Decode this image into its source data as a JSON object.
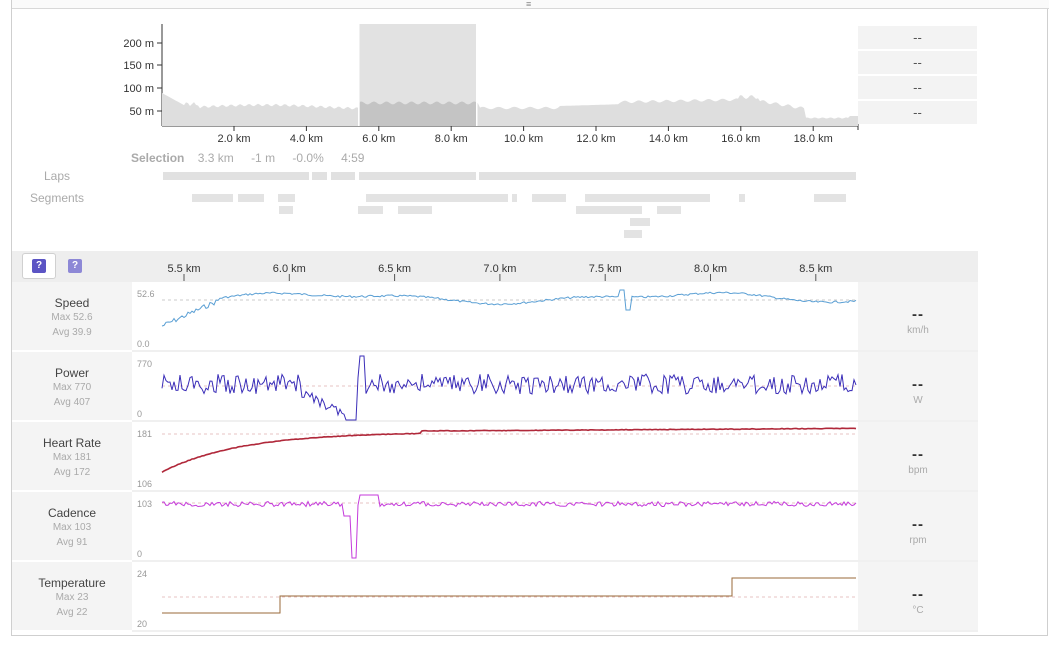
{
  "overview": {
    "y_ticks": [
      "200 m",
      "150 m",
      "100 m",
      "50 m"
    ],
    "x_ticks": [
      "2.0 km",
      "4.0 km",
      "6.0 km",
      "8.0 km",
      "10.0 km",
      "12.0 km",
      "14.0 km",
      "16.0 km",
      "18.0 km"
    ],
    "side_values": [
      "--",
      "--",
      "--",
      "--"
    ]
  },
  "selection": {
    "label": "Selection",
    "distance": "3.3 km",
    "elevation": "-1 m",
    "grade": "-0.0%",
    "time": "4:59"
  },
  "tracks": {
    "laps_label": "Laps",
    "segments_label": "Segments"
  },
  "toolbar": {
    "button1_icon": "question-icon",
    "button2_icon": "question-icon",
    "glyph": "?"
  },
  "ruler": {
    "x_ticks": [
      "5.5 km",
      "6.0 km",
      "6.5 km",
      "7.0 km",
      "7.5 km",
      "8.0 km",
      "8.5 km"
    ]
  },
  "panels": [
    {
      "name": "Speed",
      "max": "Max 52.6",
      "avg": "Avg 39.9",
      "ytop": "52.6",
      "ybot": "0.0",
      "value": "--",
      "unit": "km/h",
      "color": "#5a9fd4"
    },
    {
      "name": "Power",
      "max": "Max 770",
      "avg": "Avg 407",
      "ytop": "770",
      "ybot": "0",
      "value": "--",
      "unit": "W",
      "color": "#3a2db8"
    },
    {
      "name": "Heart Rate",
      "max": "Max 181",
      "avg": "Avg 172",
      "ytop": "181",
      "ybot": "106",
      "value": "--",
      "unit": "bpm",
      "color": "#b0283a"
    },
    {
      "name": "Cadence",
      "max": "Max 103",
      "avg": "Avg 91",
      "ytop": "103",
      "ybot": "0",
      "value": "--",
      "unit": "rpm",
      "color": "#c43adb"
    },
    {
      "name": "Temperature",
      "max": "Max 23",
      "avg": "Avg 22",
      "ytop": "24",
      "ybot": "20",
      "value": "--",
      "unit": "°C",
      "color": "#9a6a3a"
    }
  ],
  "colors": {
    "accent_question": "#6a63c9"
  }
}
